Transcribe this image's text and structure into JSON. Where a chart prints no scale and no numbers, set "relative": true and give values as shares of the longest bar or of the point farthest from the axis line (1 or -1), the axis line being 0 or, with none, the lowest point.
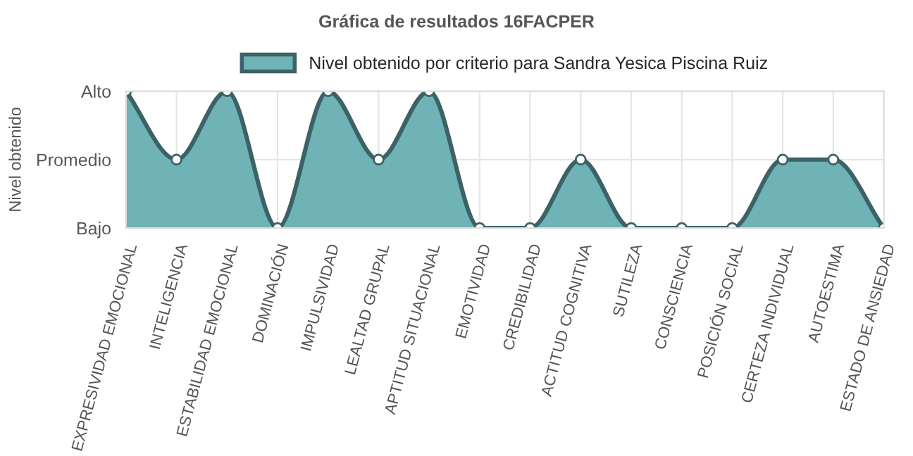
{
  "chart_data": {
    "type": "area",
    "title": "Gráfica de resultados 16FACPER",
    "ylabel": "Nivel obtenido",
    "relative": true,
    "categories": [
      "EXPRESIVIDAD EMOCIONAL",
      "INTELIGENCIA",
      "ESTABILIDAD EMOCIONAL",
      "DOMINACIÓN",
      "IMPULSIVIDAD",
      "LEALTAD GRUPAL",
      "APTITUD SITUACIONAL",
      "EMOTIVIDAD",
      "CREDIBILIDAD",
      "ACTITUD COGNITIVA",
      "SUTILEZA",
      "CONSCIENCIA",
      "POSICIÓN SOCIAL",
      "CERTEZA INDIVIDUAL",
      "AUTOESTIMA",
      "ESTADO DE ANSIEDAD"
    ],
    "series": [
      {
        "name": "Nivel obtenido por criterio para Sandra Yesica Piscina Ruiz",
        "color": "#6fb3b7",
        "values": [
          1,
          0.5,
          1,
          0,
          1,
          0.5,
          1,
          0,
          0,
          0.5,
          0,
          0,
          0,
          0.5,
          0.5,
          0
        ]
      }
    ],
    "annotations": [
      "Alto",
      "Promedio",
      "Bajo"
    ],
    "grid": true,
    "legend": "top",
    "marker": "circle",
    "line_style": "solid"
  }
}
